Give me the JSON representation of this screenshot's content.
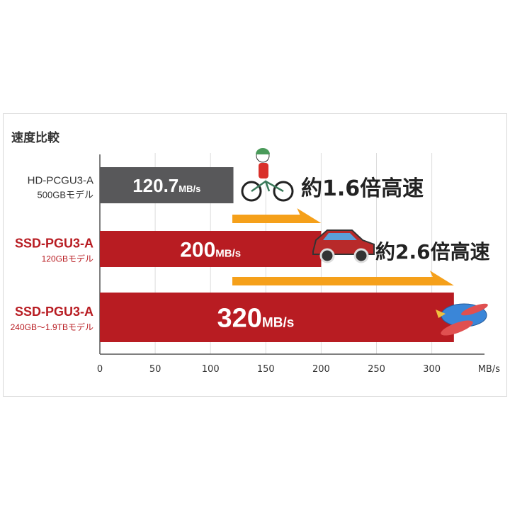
{
  "chart_data": {
    "type": "bar",
    "orientation": "horizontal",
    "title": "速度比較",
    "xlabel": "MB/s",
    "xlim": [
      0,
      350
    ],
    "xticks": [
      0,
      50,
      100,
      150,
      200,
      250,
      300
    ],
    "grid": true,
    "categories": [
      {
        "name": "HD-PCGU3-A",
        "sub": "500GBモデル",
        "value": 120.7,
        "label_num": "120.7",
        "label_unit": "MB/s",
        "color": "#58585a",
        "label_color": "#333333"
      },
      {
        "name": "SSD-PGU3-A",
        "sub": "120GBモデル",
        "value": 200,
        "label_num": "200",
        "label_unit": "MB/s",
        "color": "#b81c22",
        "label_color": "#b81c22"
      },
      {
        "name": "SSD-PGU3-A",
        "sub": "240GB～1.9TBモデル",
        "value": 320,
        "label_num": "320",
        "label_unit": "MB/s",
        "color": "#b81c22",
        "label_color": "#b81c22"
      }
    ],
    "annotations": [
      {
        "text": "約1.6倍高速",
        "prefix": "約",
        "num": "1.6",
        "suffix": "倍高速",
        "icon": "bicycle-icon",
        "from": 120.7,
        "to": 200
      },
      {
        "text": "約2.6倍高速",
        "prefix": "約",
        "num": "2.6",
        "suffix": "倍高速",
        "icon": "car-icon",
        "from": 120.7,
        "to": 320
      }
    ],
    "end_icon": "airplane-icon",
    "arrow_color": "#f5a01a"
  }
}
